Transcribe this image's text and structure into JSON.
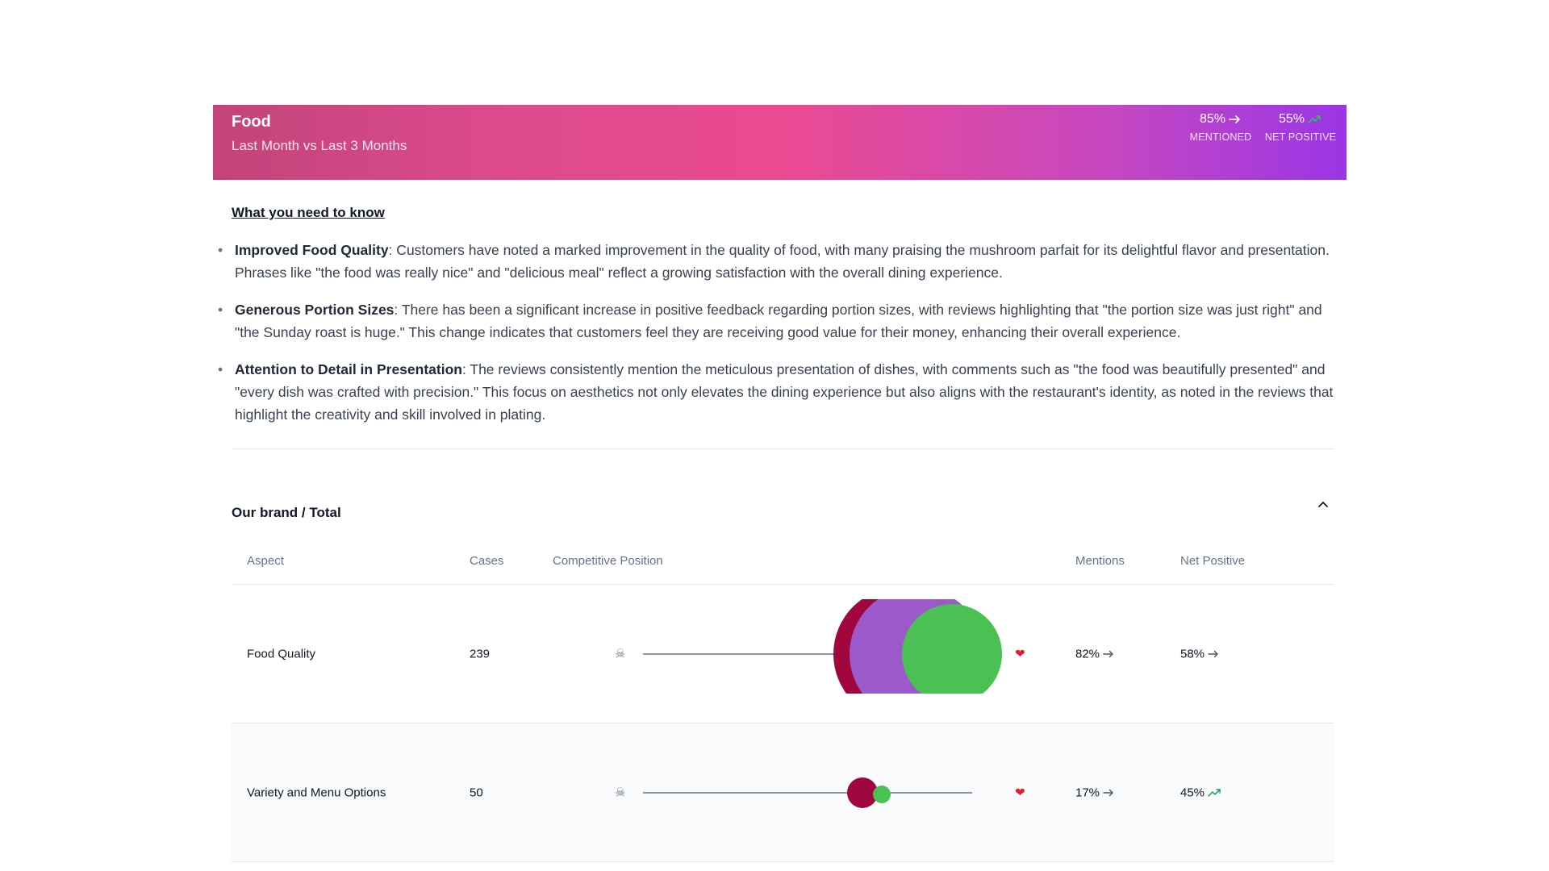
{
  "header": {
    "title": "Food",
    "subtitle": "Last Month vs Last 3 Months",
    "mentioned": {
      "value": "85%",
      "label": "MENTIONED",
      "trend": "flat"
    },
    "net_positive": {
      "value": "55%",
      "label": "NET POSITIVE",
      "trend": "up"
    }
  },
  "summary": {
    "title": "What you need to know",
    "items": [
      {
        "heading": "Improved Food Quality",
        "text": ": Customers have noted a marked improvement in the quality of food, with many praising the mushroom parfait for its delightful flavor and presentation. Phrases like \"the food was really nice\" and \"delicious meal\" reflect a growing satisfaction with the overall dining experience."
      },
      {
        "heading": "Generous Portion Sizes",
        "text": ": There has been a significant increase in positive feedback regarding portion sizes, with reviews highlighting that \"the portion size was just right\" and \"the Sunday roast is huge.\" This change indicates that customers feel they are receiving good value for their money, enhancing their overall experience."
      },
      {
        "heading": "Attention to Detail in Presentation",
        "text": ": The reviews consistently mention the meticulous presentation of dishes, with comments such as \"the food was beautifully presented\" and \"every dish was crafted with precision.\" This focus on aesthetics not only elevates the dining experience but also aligns with the restaurant's identity, as noted in the reviews that highlight the creativity and skill involved in plating."
      }
    ]
  },
  "brand": {
    "title": "Our brand / Total",
    "columns": {
      "aspect": "Aspect",
      "cases": "Cases",
      "position": "Competitive Position",
      "mentions": "Mentions",
      "net_positive": "Net Positive"
    },
    "rows": [
      {
        "aspect": "Food Quality",
        "cases": "239",
        "mentions": "82%",
        "mentions_trend": "flat",
        "net_positive": "58%",
        "net_trend": "flat"
      },
      {
        "aspect": "Variety and Menu Options",
        "cases": "50",
        "mentions": "17%",
        "mentions_trend": "flat",
        "net_positive": "45%",
        "net_trend": "up"
      }
    ]
  },
  "colors": {
    "banner_start": "#c2447a",
    "banner_mid": "#eb4a91",
    "banner_end": "#9a36e6",
    "bubble_dark": "#a0073f",
    "bubble_purple": "#9b59c9",
    "bubble_green": "#4cc153",
    "trend_up": "#16a34a",
    "trend_flat": "#4b5563"
  },
  "icons": {
    "left_marker": "skull-icon",
    "right_marker": "heart-icon",
    "collapse": "chevron-up-icon"
  }
}
